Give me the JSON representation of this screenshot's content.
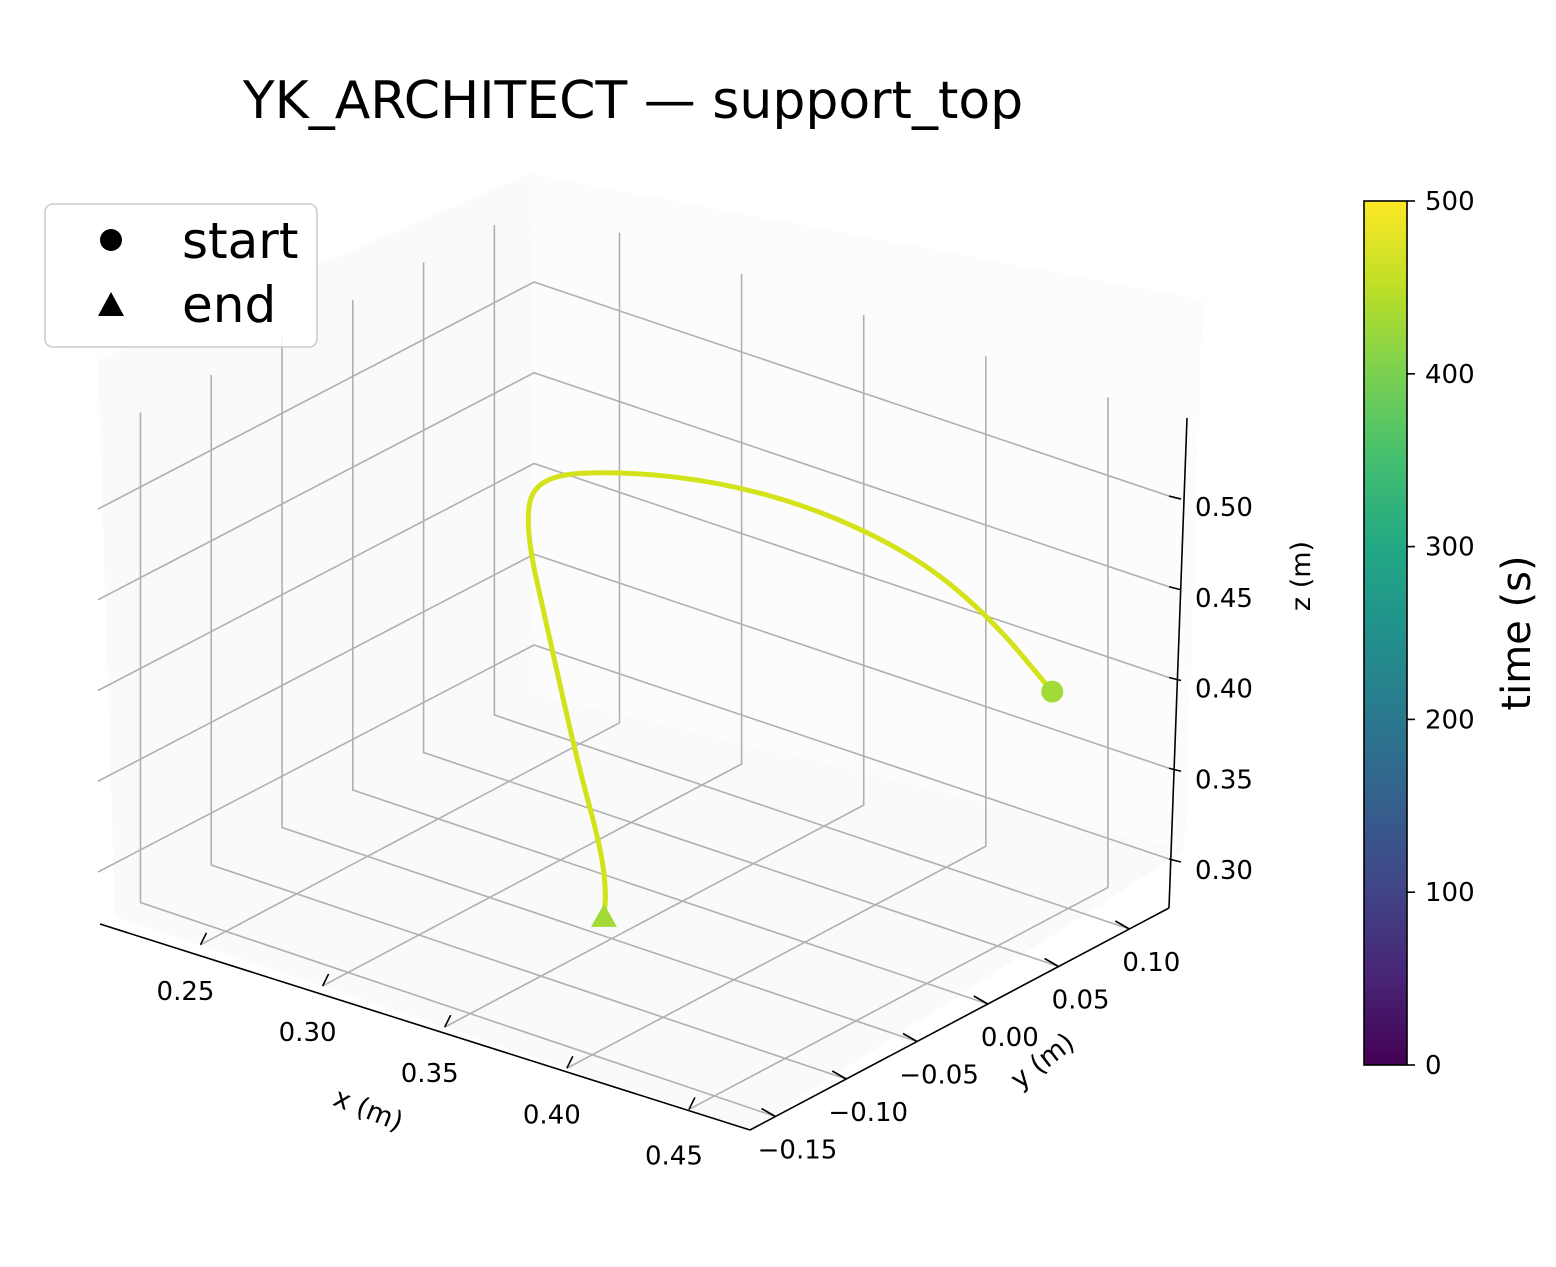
{
  "chart_data": {
    "type": "line3d",
    "title": "YK_ARCHITECT — support_top",
    "xlabel": "x (m)",
    "ylabel": "y (m)",
    "zlabel": "z (m)",
    "x_ticks": [
      "0.25",
      "0.30",
      "0.35",
      "0.40",
      "0.45"
    ],
    "y_ticks": [
      "−0.15",
      "−0.10",
      "−0.05",
      "0.00",
      "0.05",
      "0.10"
    ],
    "z_ticks": [
      "0.30",
      "0.35",
      "0.40",
      "0.45",
      "0.50"
    ],
    "colorbar": {
      "label": "time (s)",
      "ticks": [
        "0",
        "100",
        "200",
        "300",
        "400",
        "500"
      ],
      "range": [
        0,
        500
      ],
      "colormap": "viridis"
    },
    "legend": {
      "placement": "top-left",
      "entries": [
        {
          "label": "start",
          "marker": "circle"
        },
        {
          "label": "end",
          "marker": "triangle"
        }
      ]
    },
    "series": [
      {
        "line_color": "#d4e21a",
        "marker_color": "#a2da37",
        "points": [
          {
            "x": 0.455,
            "y": 0.08,
            "z": 0.403
          },
          {
            "x": 0.43,
            "y": 0.08,
            "z": 0.432
          },
          {
            "x": 0.4,
            "y": 0.08,
            "z": 0.452
          },
          {
            "x": 0.36,
            "y": 0.08,
            "z": 0.46
          },
          {
            "x": 0.32,
            "y": 0.08,
            "z": 0.457
          },
          {
            "x": 0.28,
            "y": 0.08,
            "z": 0.445
          },
          {
            "x": 0.245,
            "y": 0.08,
            "z": 0.427
          },
          {
            "x": 0.25,
            "y": 0.06,
            "z": 0.413
          },
          {
            "x": 0.29,
            "y": 0.01,
            "z": 0.385
          },
          {
            "x": 0.33,
            "y": -0.04,
            "z": 0.358
          },
          {
            "x": 0.357,
            "y": -0.07,
            "z": 0.335
          },
          {
            "x": 0.368,
            "y": -0.085,
            "z": 0.322
          },
          {
            "x": 0.37,
            "y": -0.09,
            "z": 0.31
          }
        ]
      }
    ]
  }
}
